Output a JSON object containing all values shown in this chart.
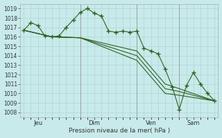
{
  "background_color": "#c8eaea",
  "grid_color": "#b0d4d4",
  "line_color": "#2d6020",
  "marker": "+",
  "xlabel": "Pression niveau de la mer( hPa )",
  "ylim": [
    1007.5,
    1019.5
  ],
  "yticks": [
    1008,
    1009,
    1010,
    1011,
    1012,
    1013,
    1014,
    1015,
    1016,
    1017,
    1018,
    1019
  ],
  "day_labels": [
    "Jeu",
    "Dim",
    "Ven",
    "Sam"
  ],
  "vline_x": [
    8,
    16,
    22
  ],
  "xtick_positions": [
    2,
    10,
    18,
    24
  ],
  "series": [
    {
      "x": [
        0,
        1,
        2,
        3,
        4,
        5,
        6,
        7,
        8,
        9,
        10,
        11,
        12,
        13,
        14,
        15,
        16,
        17,
        18,
        19,
        20,
        21,
        22,
        23,
        24,
        25,
        26,
        27
      ],
      "y": [
        1016.7,
        1017.5,
        1017.2,
        1016.1,
        1016.0,
        1016.1,
        1017.0,
        1017.8,
        1018.6,
        1019.0,
        1018.5,
        1018.2,
        1016.6,
        1016.5,
        1016.6,
        1016.5,
        1016.6,
        1014.8,
        1014.5,
        1014.2,
        1012.6,
        1010.7,
        1008.3,
        1010.8,
        1012.2,
        1011.0,
        1010.0,
        1009.2
      ]
    },
    {
      "x": [
        0,
        4,
        8,
        16,
        20,
        22,
        27
      ],
      "y": [
        1016.7,
        1016.0,
        1015.9,
        1014.5,
        1011.0,
        1010.5,
        1009.2
      ]
    },
    {
      "x": [
        0,
        4,
        8,
        16,
        20,
        22,
        27
      ],
      "y": [
        1016.7,
        1016.0,
        1015.9,
        1014.0,
        1010.5,
        1010.2,
        1009.2
      ]
    },
    {
      "x": [
        0,
        4,
        8,
        16,
        20,
        22,
        27
      ],
      "y": [
        1016.7,
        1016.0,
        1015.9,
        1013.5,
        1010.0,
        1009.8,
        1009.2
      ]
    }
  ]
}
